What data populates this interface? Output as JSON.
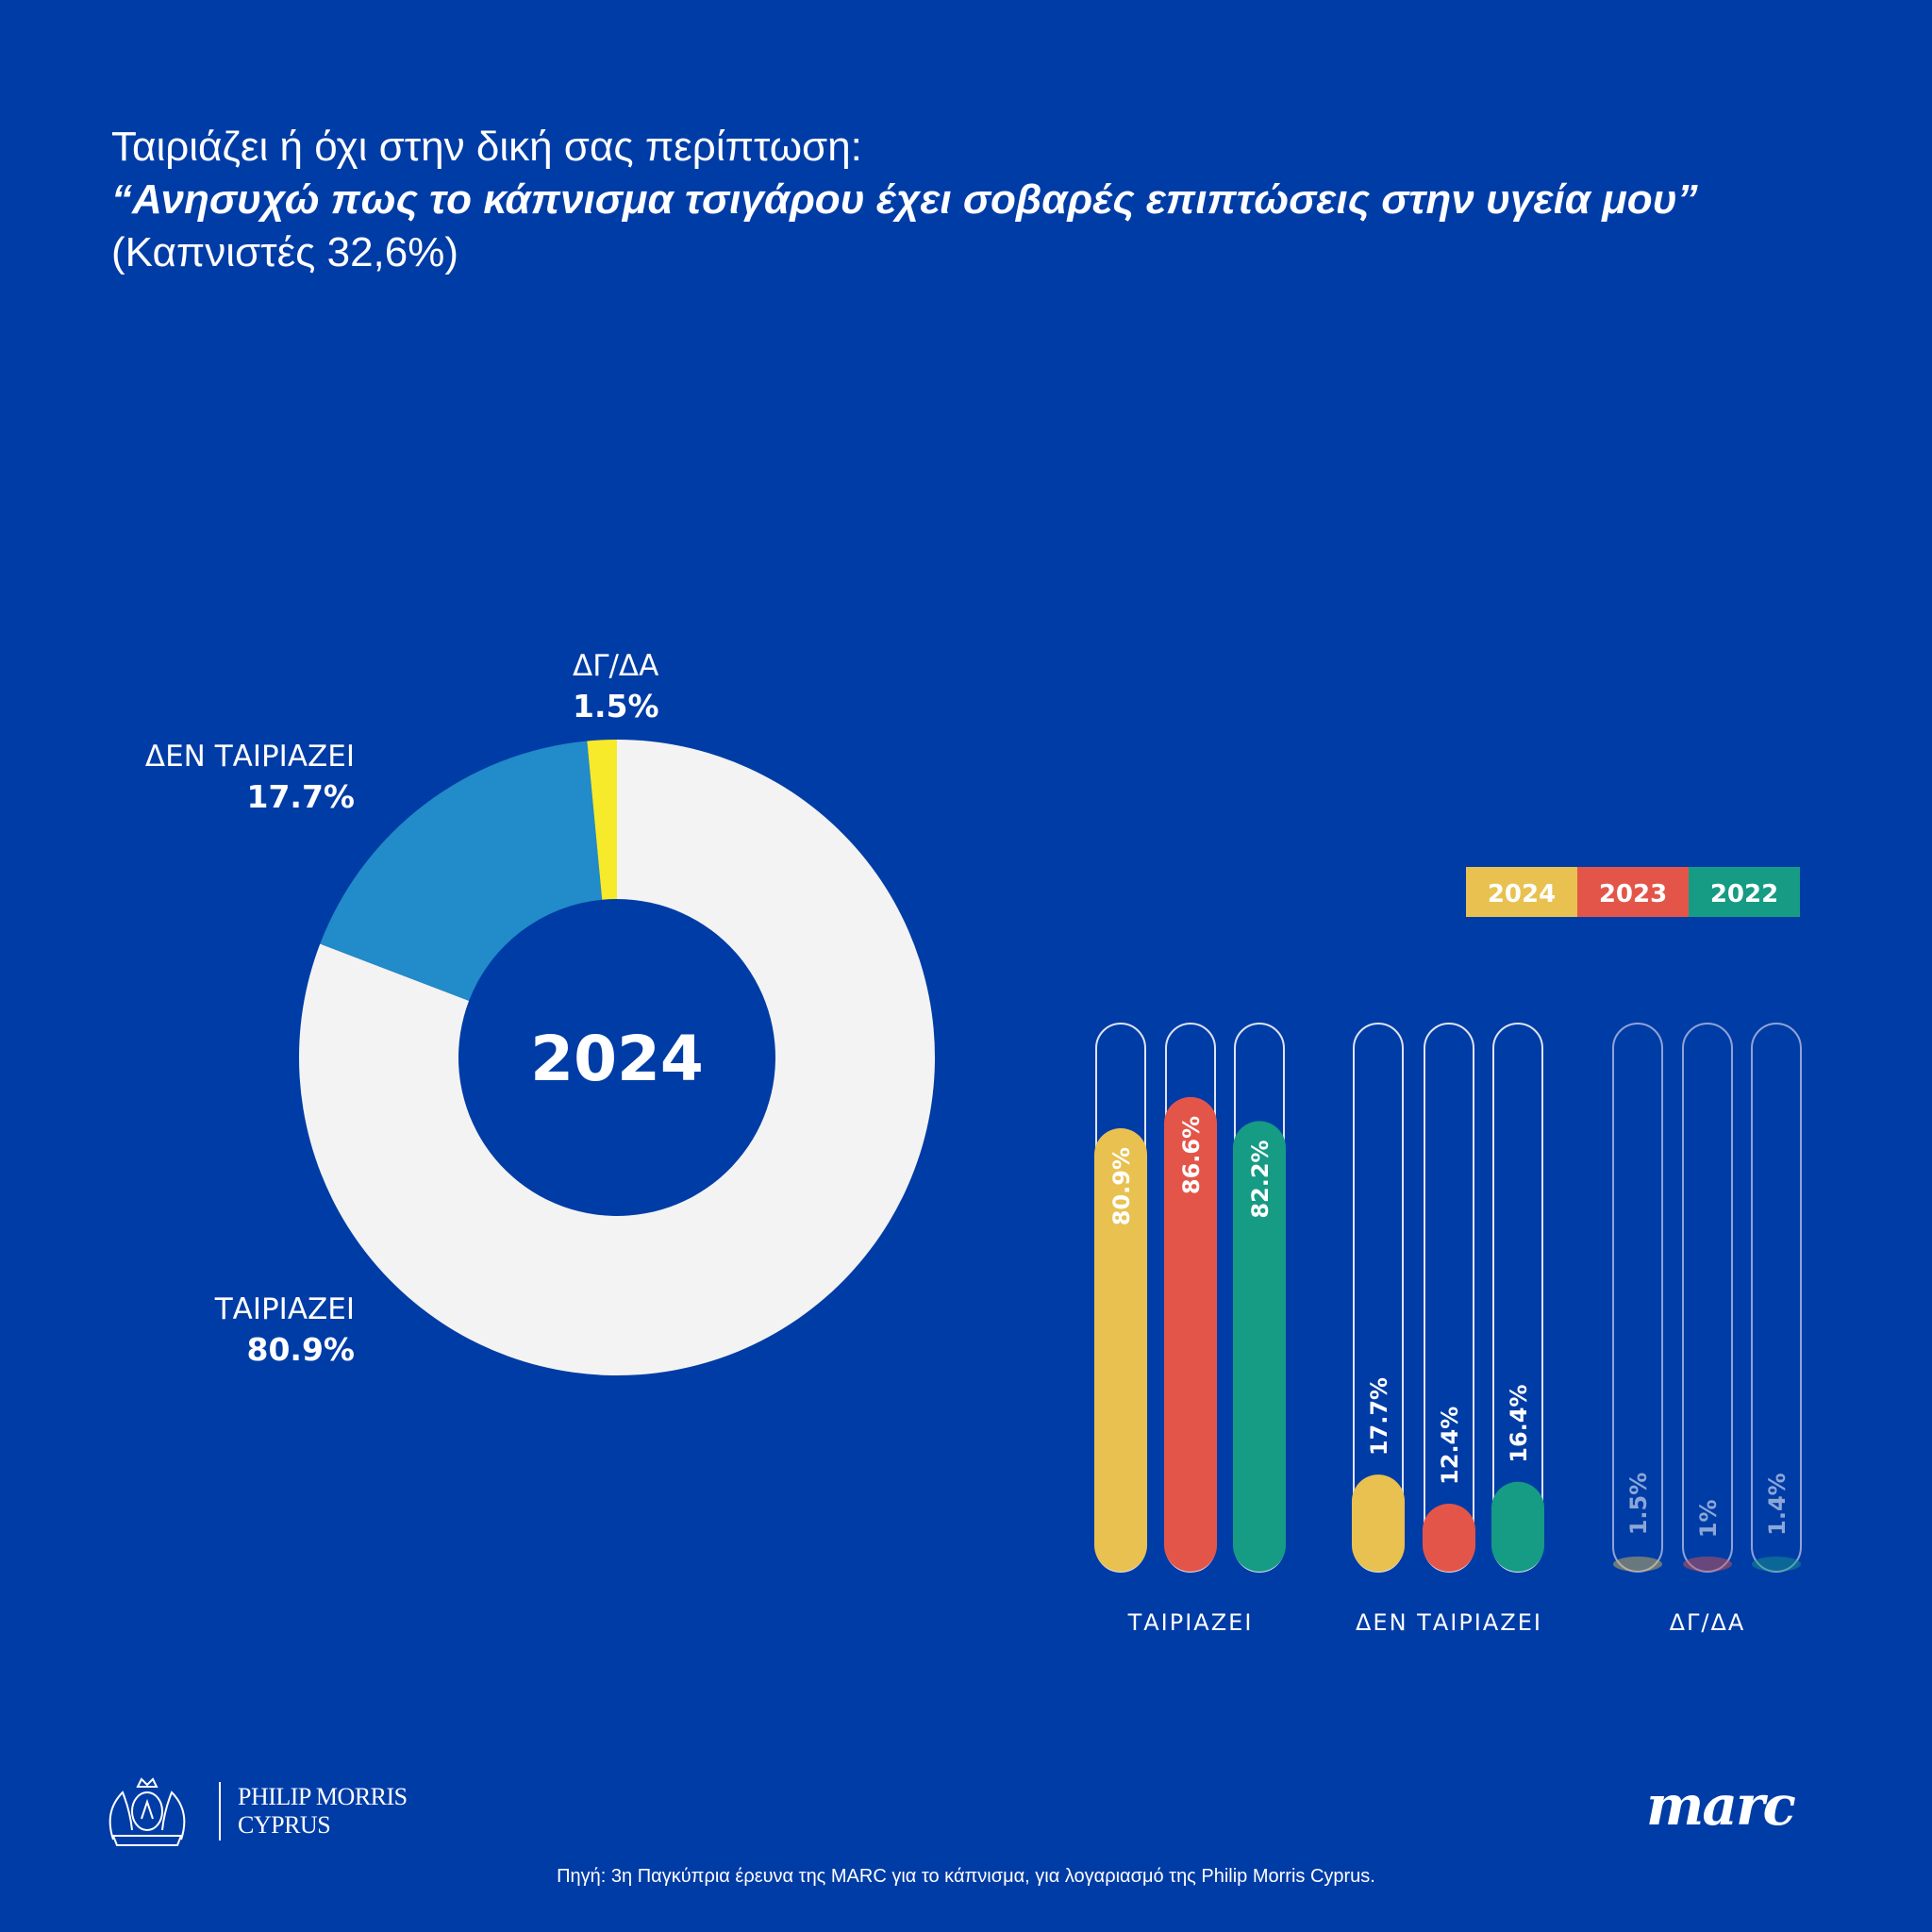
{
  "title": {
    "line1": "Ταιριάζει ή όχι στην δική σας περίπτωση:",
    "line2": "“Ανησυχώ πως το κάπνισμα τσιγάρου έχει σοβαρές επιπτώσεις στην υγεία μου”",
    "line3": "(Καπνιστές 32,6%)"
  },
  "chart_data": [
    {
      "type": "pie",
      "variant": "donut",
      "center_label": "2024",
      "slices": [
        {
          "label": "ΤΑΙΡΙΑΖΕΙ",
          "value": 80.9,
          "display": "80.9%",
          "color": "#f3f3f3"
        },
        {
          "label": "ΔΕΝ ΤΑΙΡΙΑΖΕΙ",
          "value": 17.7,
          "display": "17.7%",
          "color": "#228bc9"
        },
        {
          "label": "ΔΓ/ΔΑ",
          "value": 1.5,
          "display": "1.5%",
          "color": "#f6ea2a"
        }
      ]
    },
    {
      "type": "bar",
      "orientation": "vertical",
      "ylim": [
        0,
        100
      ],
      "legend_position": "top-right",
      "categories": [
        "ΤΑΙΡΙΑΖΕΙ",
        "ΔΕΝ ΤΑΙΡΙΑΖΕΙ",
        "ΔΓ/ΔΑ"
      ],
      "series": [
        {
          "name": "2024",
          "color": "#e8c150",
          "values": [
            80.9,
            17.7,
            1.5
          ],
          "labels": [
            "80.9%",
            "17.7%",
            "1.5%"
          ]
        },
        {
          "name": "2023",
          "color": "#e45549",
          "values": [
            86.6,
            12.4,
            1.0
          ],
          "labels": [
            "86.6%",
            "12.4%",
            "1%"
          ]
        },
        {
          "name": "2022",
          "color": "#169b84",
          "values": [
            82.2,
            16.4,
            1.4
          ],
          "labels": [
            "82.2%",
            "16.4%",
            "1.4%"
          ]
        }
      ]
    }
  ],
  "footer": {
    "pm_logo_line1": "PHILIP MORRIS",
    "pm_logo_line2": "CYPRUS",
    "marc_logo": "marc",
    "source": "Πηγή: 3η Παγκύπρια έρευνα της MARC για το κάπνισμα, για λογαριασμό της Philip Morris Cyprus."
  },
  "colors": {
    "background": "#003ca6"
  }
}
